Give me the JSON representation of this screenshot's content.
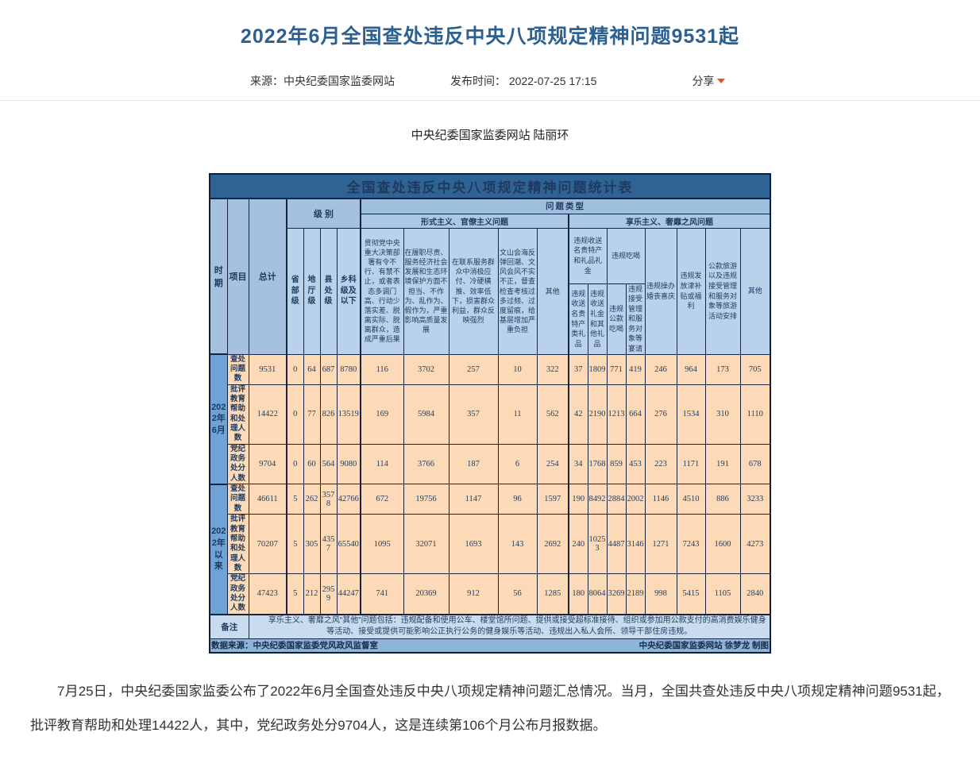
{
  "page": {
    "title": "2022年6月全国查处违反中央八项规定精神问题9531起",
    "meta": {
      "source": "来源：中央纪委国家监委网站",
      "publish": "发布时间： 2022-07-25 17:15",
      "share_label": "分享"
    },
    "caption": "中央纪委国家监委网站 陆丽环",
    "body_paragraph": "7月25日，中央纪委国家监委公布了2022年6月全国查处违反中央八项规定精神问题汇总情况。当月，全国共查处违反中央八项规定精神问题9531起，批评教育帮助和处理14422人，其中，党纪政务处分9704人，这是连续第106个月公布月报数据。"
  },
  "table": {
    "title": "全国查处违反中央八项规定精神问题统计表",
    "headers": {
      "period": "时期",
      "item": "项目",
      "total": "总计",
      "level_group": "级 别",
      "problem_type": "问题类型",
      "levels": [
        "省部级",
        "地厅级",
        "县处级",
        "乡科级及以下"
      ],
      "formalism_group": "形式主义、官僚主义问题",
      "hedonism_group": "享乐主义、奢靡之风问题",
      "formalism_cols": [
        "贯彻党中央重大决策部署有令不行、有禁不止，或者表态多调门高、行动少落实差、脱离实际、脱离群众，造成严重后果",
        "在履职尽责、服务经济社会发展和生态环境保护方面不担当、不作为、乱作为、假作为，严重影响高质量发展",
        "在联系服务群众中消极应付、冷硬横推、效率低下，损害群众利益，群众反映强烈",
        "文山会海反弹回潮、文风会风不实不正，督查检查考核过多过频、过度留痕，给基层增加严重负担",
        "其他"
      ],
      "gifts_group": "违规收送名贵特产和礼品礼金",
      "gifts_cols": [
        "违规收送名贵特产类礼品",
        "违规收送礼金和其他礼品"
      ],
      "dining_group": "违规吃喝",
      "dining_cols": [
        "违规公款吃喝",
        "违规接受管理和服务对象等宴请"
      ],
      "hedonism_cols": [
        "违规操办婚丧喜庆",
        "违规发放津补贴或福利",
        "公款旅游以及违规接受管理和服务对象等旅游活动安排",
        "其他"
      ]
    },
    "periods": [
      {
        "label": "2022年6月",
        "rows": [
          {
            "label": "查处问题数",
            "values": [
              9531,
              0,
              64,
              687,
              8780,
              116,
              3702,
              257,
              10,
              322,
              37,
              1809,
              771,
              419,
              246,
              964,
              173,
              705
            ]
          },
          {
            "label": "批评教育帮助和处理人数",
            "values": [
              14422,
              0,
              77,
              826,
              13519,
              169,
              5984,
              357,
              11,
              562,
              42,
              2190,
              1213,
              664,
              276,
              1534,
              310,
              1110
            ]
          },
          {
            "label": "党纪政务处分人数",
            "values": [
              9704,
              0,
              60,
              564,
              9080,
              114,
              3766,
              187,
              6,
              254,
              34,
              1768,
              859,
              453,
              223,
              1171,
              191,
              678
            ]
          }
        ]
      },
      {
        "label": "2022年以来",
        "rows": [
          {
            "label": "查处问题数",
            "values": [
              46611,
              5,
              262,
              3578,
              42766,
              672,
              19756,
              1147,
              96,
              1597,
              190,
              8492,
              2884,
              2002,
              1146,
              4510,
              886,
              3233
            ]
          },
          {
            "label": "批评教育帮助和处理人数",
            "values": [
              70207,
              5,
              305,
              4357,
              65540,
              1095,
              32071,
              1693,
              143,
              2692,
              240,
              10253,
              4487,
              3146,
              1271,
              7243,
              1600,
              4273
            ]
          },
          {
            "label": "党纪政务处分人数",
            "values": [
              47423,
              5,
              212,
              2959,
              44247,
              741,
              20369,
              912,
              56,
              1285,
              180,
              8064,
              3269,
              2189,
              998,
              5415,
              1105,
              2840
            ]
          }
        ]
      }
    ],
    "note_label": "备注",
    "note": "享乐主义、奢靡之风“其他”问题包括：违规配备和使用公车、楼堂馆所问题、提供或接受超标准接待、组织或参加用公款支付的高消费娱乐健身等活动、接受或提供可能影响公正执行公务的健身娱乐等活动、违规出入私人会所、领导干部住房违规。",
    "source_left": "数据来源：中央纪委国家监委党风政风监督室",
    "source_right": "中央纪委国家监委网站 徐梦龙 制图"
  }
}
